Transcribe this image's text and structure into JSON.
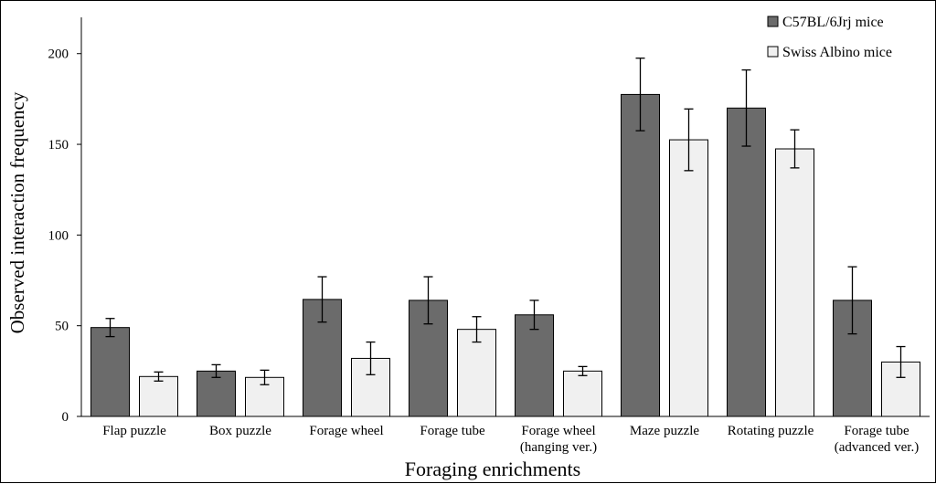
{
  "chart_data": {
    "type": "bar",
    "title": "",
    "xlabel": "Foraging enrichments",
    "ylabel": "Observed interaction frequency",
    "ylim": [
      0,
      220
    ],
    "yticks": [
      "0",
      "50",
      "100",
      "150",
      "200"
    ],
    "grid": false,
    "legend_position": "top-right",
    "categories": [
      [
        "Flap puzzle"
      ],
      [
        "Box puzzle"
      ],
      [
        "Forage wheel"
      ],
      [
        "Forage tube"
      ],
      [
        "Forage wheel",
        "(hanging ver.)"
      ],
      [
        "Maze puzzle"
      ],
      [
        "Rotating puzzle"
      ],
      [
        "Forage tube",
        "(advanced ver.)"
      ]
    ],
    "series": [
      {
        "name": "C57BL/6Jrj mice",
        "color": "#6b6b6b",
        "values": [
          49,
          25,
          64.5,
          64,
          56,
          177.5,
          170,
          64
        ],
        "error": [
          5,
          3.5,
          12.5,
          13,
          8,
          20,
          21,
          18.5
        ]
      },
      {
        "name": "Swiss Albino mice",
        "color": "#f0f0f0",
        "values": [
          22,
          21.5,
          32,
          48,
          25,
          152.5,
          147.5,
          30
        ],
        "error": [
          2.5,
          4,
          9,
          7,
          2.5,
          17,
          10.5,
          8.5
        ]
      }
    ]
  }
}
